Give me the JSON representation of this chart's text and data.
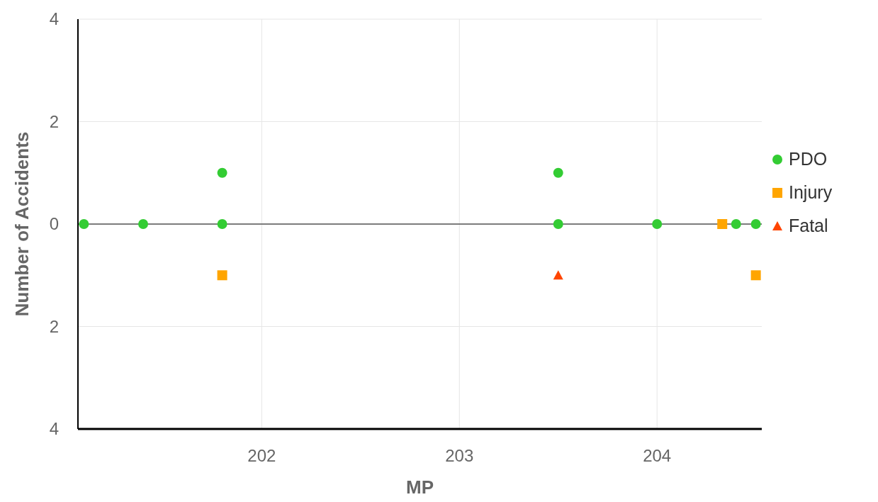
{
  "chart_data": {
    "type": "scatter",
    "xlabel": "MP",
    "ylabel": "Number of Accidents",
    "xlim": [
      201.07,
      204.53
    ],
    "xticks": [
      202,
      203,
      204
    ],
    "ylim": [
      -4,
      4
    ],
    "yticks": [
      {
        "value": -4,
        "label": "4"
      },
      {
        "value": -2,
        "label": "2"
      },
      0,
      2,
      4
    ],
    "grid": true,
    "legend": "right",
    "ref_lines": [
      {
        "axis": "y",
        "value": 0,
        "color": "#555555"
      }
    ],
    "series": [
      {
        "name": "PDO",
        "color": "#33cc33",
        "marker": "circle",
        "x": [
          201.1,
          201.4,
          201.8,
          201.8,
          203.5,
          203.5,
          204.0,
          204.4,
          204.5
        ],
        "values": [
          0,
          0,
          0,
          1,
          0,
          1,
          0,
          0,
          0
        ]
      },
      {
        "name": "Injury",
        "color": "#ffa500",
        "marker": "square",
        "x": [
          201.8,
          204.33,
          204.5
        ],
        "values": [
          -1,
          0,
          -1
        ]
      },
      {
        "name": "Fatal",
        "color": "#ff4500",
        "marker": "triangle",
        "x": [
          203.5
        ],
        "values": [
          -1
        ]
      }
    ]
  }
}
